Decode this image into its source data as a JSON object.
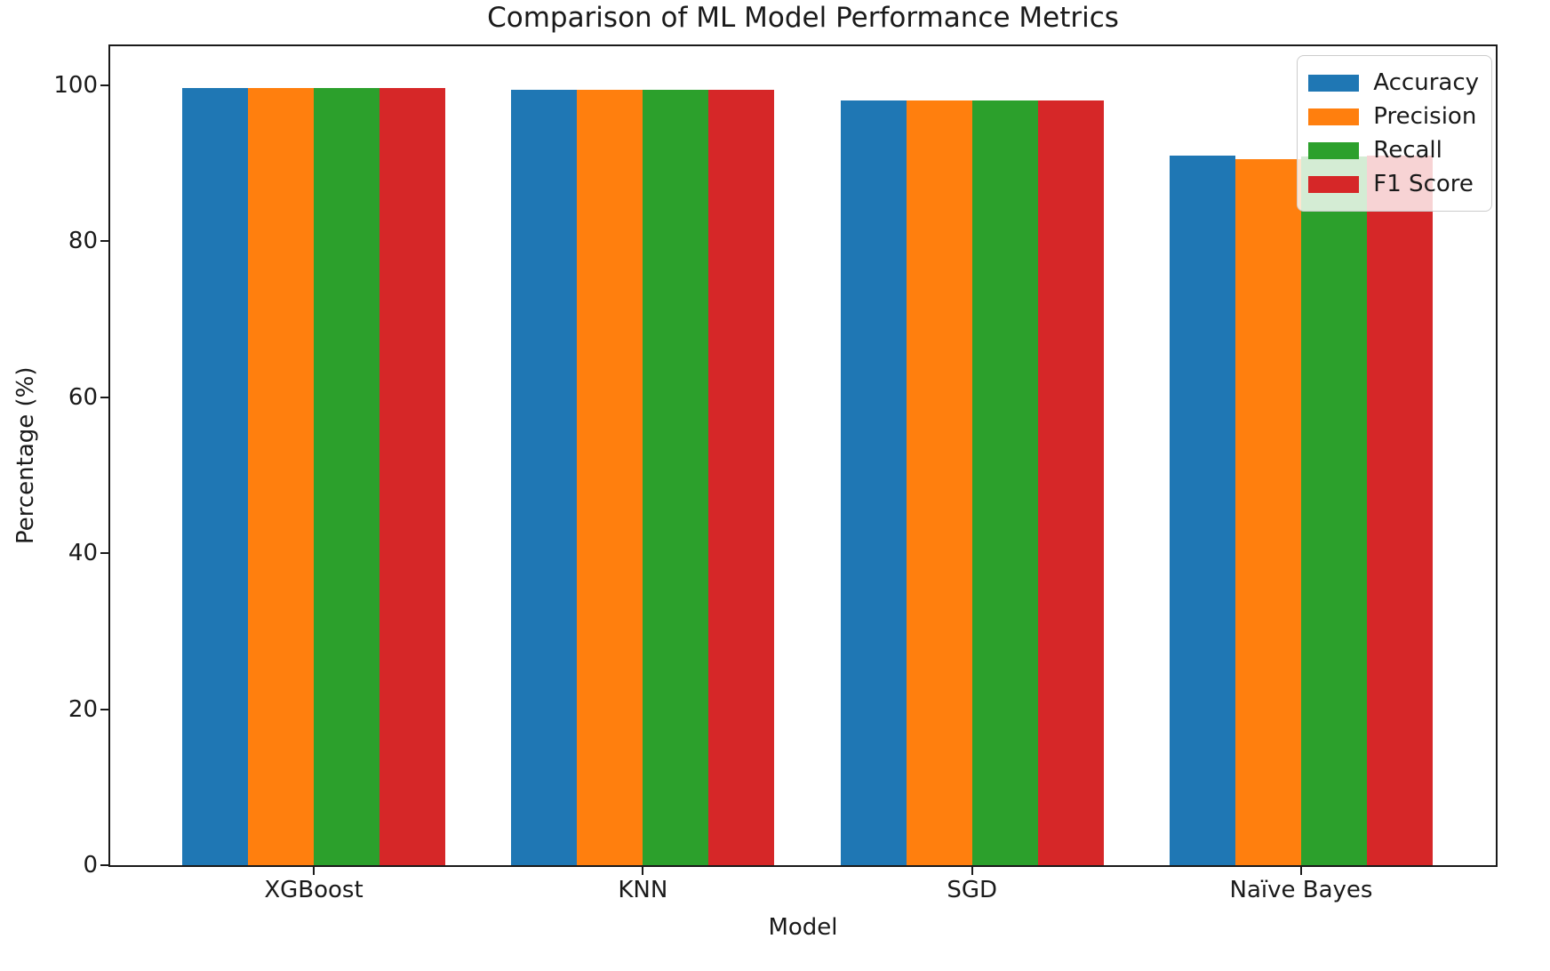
{
  "figure": {
    "background_color": "#ffffff",
    "text_color": "#1a1a1a"
  },
  "chart_data": {
    "type": "bar",
    "title": "Comparison of ML Model Performance Metrics",
    "xlabel": "Model",
    "ylabel": "Percentage (%)",
    "categories": [
      "XGBoost",
      "KNN",
      "SGD",
      "Naïve Bayes"
    ],
    "series": [
      {
        "name": "Accuracy",
        "color": "#1f77b4",
        "values": [
          99.7,
          99.4,
          98.0,
          91.0
        ]
      },
      {
        "name": "Precision",
        "color": "#ff7f0e",
        "values": [
          99.7,
          99.4,
          98.0,
          90.5
        ]
      },
      {
        "name": "Recall",
        "color": "#2ca02c",
        "values": [
          99.7,
          99.4,
          98.0,
          90.9
        ]
      },
      {
        "name": "F1 Score",
        "color": "#d62728",
        "values": [
          99.7,
          99.4,
          98.0,
          91.0
        ]
      }
    ],
    "ylim": [
      0,
      105
    ],
    "yticks": [
      0,
      20,
      40,
      60,
      80,
      100
    ],
    "grid": false,
    "legend": {
      "position": "upper right",
      "background_opacity": 0.8,
      "entries": [
        "Accuracy",
        "Precision",
        "Recall",
        "F1 Score"
      ]
    }
  }
}
